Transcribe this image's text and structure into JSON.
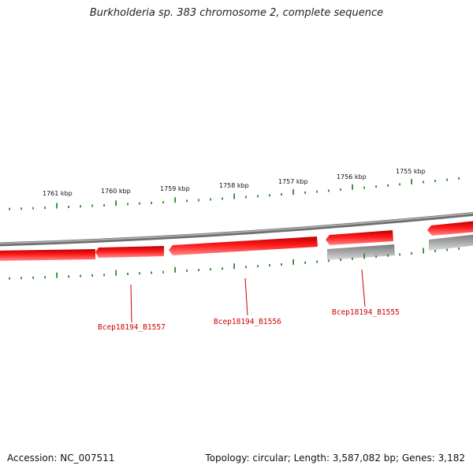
{
  "title": "Burkholderia sp. 383 chromosome 2, complete sequence",
  "footer": {
    "accession": "Accession: NC_007511",
    "summary": "Topology: circular; Length: 3,587,082 bp; Genes: 3,182"
  },
  "colors": {
    "backbone": "#8a8a8a",
    "gene_forward": "#ee1111",
    "gene_reverse_grey": "#a9a9a9",
    "tick": "#2e8b2e",
    "gene_label": "#cc0000"
  },
  "scale_labels": [
    "1761 kbp",
    "1760 kbp",
    "1759 kbp",
    "1758 kbp",
    "1757 kbp",
    "1756 kbp",
    "1755 kbp"
  ],
  "genes": [
    {
      "label": "Bcep18194_B1557",
      "strand": "forward"
    },
    {
      "label": "Bcep18194_B1556",
      "strand": "forward"
    },
    {
      "label": "Bcep18194_B1555",
      "strand": "forward"
    }
  ]
}
